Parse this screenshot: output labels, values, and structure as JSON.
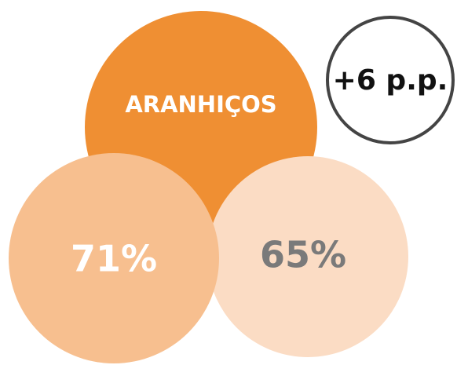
{
  "nodes": [
    {
      "label": "ARANHIÇOS"
    },
    {
      "label": "71%"
    },
    {
      "label": "65%"
    },
    {
      "label": "+6 p.p."
    }
  ]
}
